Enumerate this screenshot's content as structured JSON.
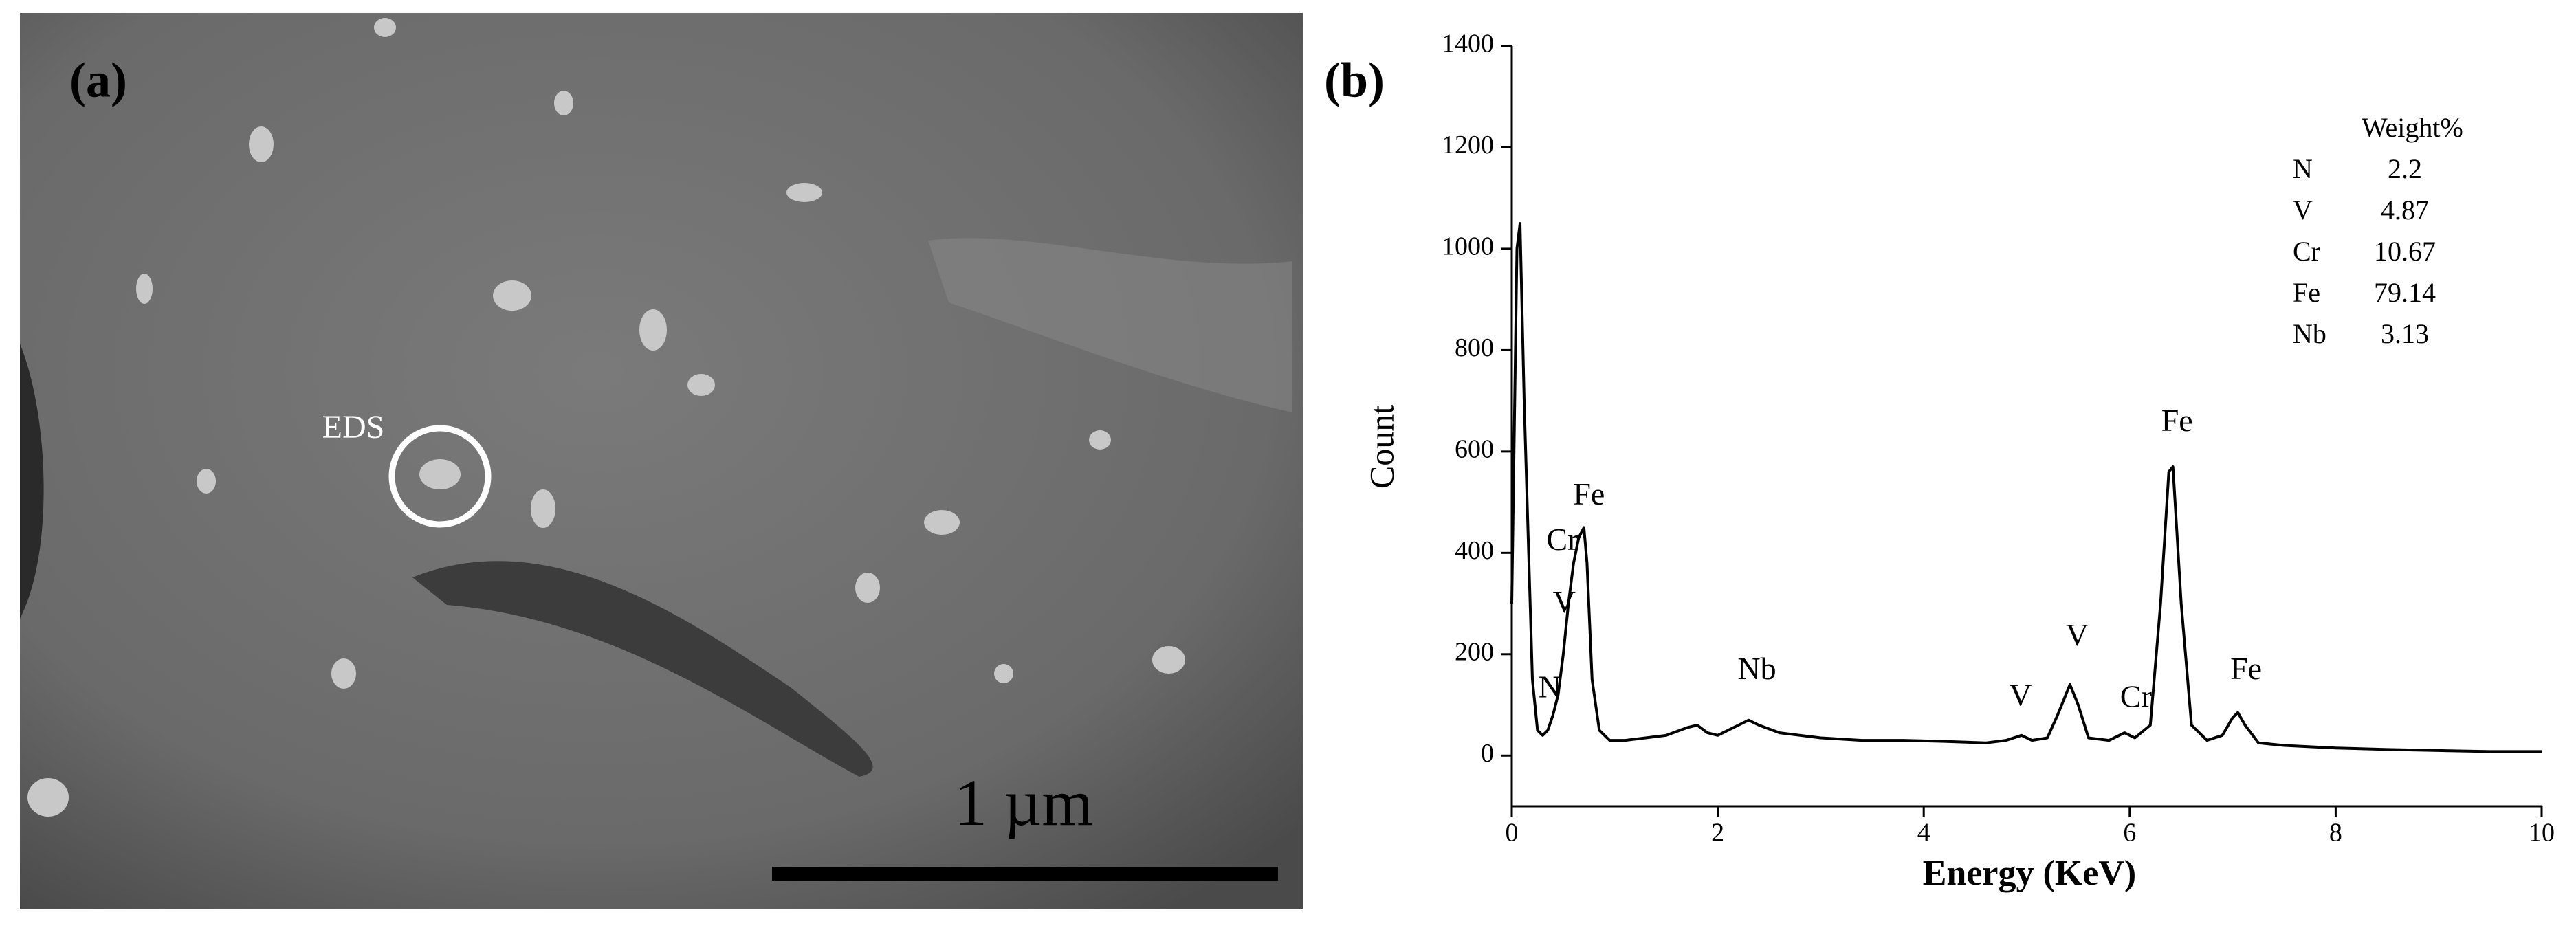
{
  "image_panel": {
    "label": "(a)",
    "marker": "EDS",
    "scale_bar": "1 µm"
  },
  "chart_data": {
    "type": "line",
    "panel_label": "(b)",
    "xlabel": "Energy (KeV)",
    "ylabel": "Count",
    "x": [
      0.0,
      0.05,
      0.08,
      0.12,
      0.2,
      0.25,
      0.3,
      0.35,
      0.4,
      0.45,
      0.5,
      0.55,
      0.6,
      0.65,
      0.7,
      0.73,
      0.78,
      0.85,
      0.95,
      1.1,
      1.3,
      1.5,
      1.7,
      1.8,
      1.9,
      2.0,
      2.1,
      2.2,
      2.3,
      2.4,
      2.6,
      2.8,
      3.0,
      3.4,
      3.8,
      4.2,
      4.6,
      4.8,
      4.95,
      5.05,
      5.2,
      5.3,
      5.42,
      5.5,
      5.6,
      5.8,
      5.95,
      6.05,
      6.2,
      6.3,
      6.38,
      6.42,
      6.5,
      6.6,
      6.75,
      6.9,
      7.0,
      7.05,
      7.12,
      7.25,
      7.5,
      8.0,
      8.5,
      9.0,
      9.5,
      10.0
    ],
    "values": [
      300,
      1000,
      1050,
      700,
      150,
      50,
      40,
      50,
      80,
      120,
      200,
      300,
      380,
      430,
      450,
      380,
      150,
      50,
      30,
      30,
      35,
      40,
      55,
      60,
      45,
      40,
      50,
      60,
      70,
      60,
      45,
      40,
      35,
      30,
      30,
      28,
      25,
      30,
      40,
      30,
      35,
      80,
      140,
      100,
      35,
      30,
      45,
      35,
      60,
      300,
      560,
      570,
      300,
      60,
      30,
      40,
      75,
      85,
      60,
      25,
      20,
      15,
      12,
      10,
      8,
      8
    ],
    "color": "#000000",
    "xlim": [
      0,
      10
    ],
    "xticks": [
      0,
      2,
      4,
      6,
      8,
      10
    ],
    "ylim": [
      -100,
      1400
    ],
    "yticks": [
      0,
      200,
      400,
      600,
      800,
      1000,
      1200,
      1400
    ],
    "annotations": [
      {
        "text": "N",
        "x": 0.37,
        "y": 129
      },
      {
        "text": "Cr",
        "x": 0.49,
        "y": 420
      },
      {
        "text": "V",
        "x": 0.51,
        "y": 297
      },
      {
        "text": "Fe",
        "x": 0.75,
        "y": 510
      },
      {
        "text": "Nb",
        "x": 2.38,
        "y": 165
      },
      {
        "text": "V",
        "x": 4.94,
        "y": 113
      },
      {
        "text": "V",
        "x": 5.49,
        "y": 232
      },
      {
        "text": "Cr",
        "x": 6.06,
        "y": 110
      },
      {
        "text": "Fe",
        "x": 6.46,
        "y": 655
      },
      {
        "text": "Fe",
        "x": 7.13,
        "y": 165
      }
    ],
    "weight_table": {
      "header": "Weight%",
      "rows": [
        [
          "N",
          2.2
        ],
        [
          "V",
          4.87
        ],
        [
          "Cr",
          10.67
        ],
        [
          "Fe",
          79.14
        ],
        [
          "Nb",
          3.13
        ]
      ]
    }
  }
}
